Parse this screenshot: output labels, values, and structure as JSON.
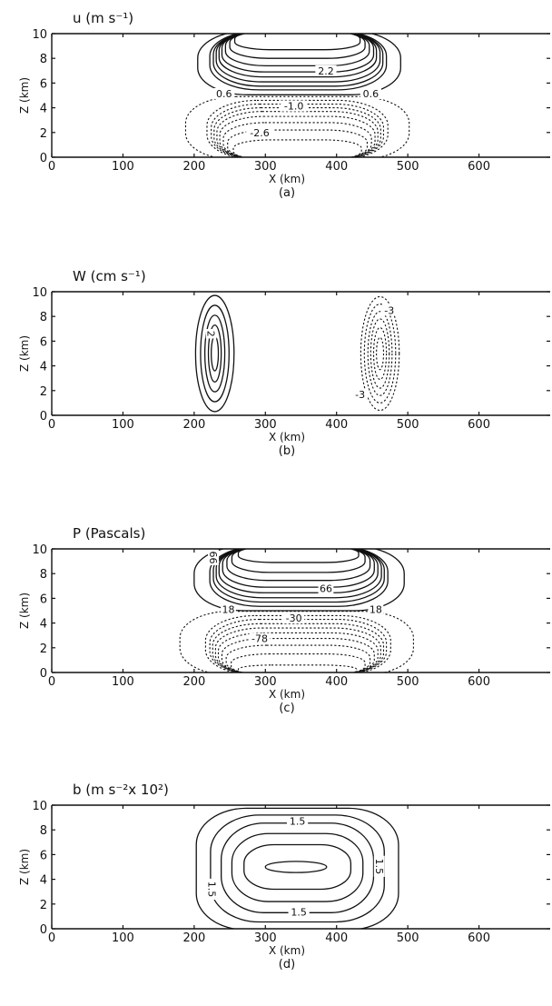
{
  "chart_data": [
    {
      "type": "contour",
      "panel_label": "(a)",
      "title": "u (m s⁻¹)",
      "xlabel": "X (km)",
      "ylabel": "Z (km)",
      "xlim": [
        0,
        700
      ],
      "ylim": [
        0,
        10
      ],
      "xticks": [
        0,
        100,
        200,
        300,
        400,
        500,
        600
      ],
      "yticks": [
        0,
        2,
        4,
        6,
        8,
        10
      ],
      "contour_labels": [
        "2.2",
        "0.6",
        "0.6",
        "-1.0",
        "-2.6"
      ],
      "contours": {
        "positive": [
          {
            "x0": 205,
            "x1": 490,
            "y0": 5.05,
            "y1": 10.2
          },
          {
            "x0": 222,
            "x1": 470,
            "y0": 5.45,
            "y1": 10.2
          },
          {
            "x0": 227,
            "x1": 465,
            "y0": 5.75,
            "y1": 10.2
          },
          {
            "x0": 231,
            "x1": 461,
            "y0": 6.1,
            "y1": 10.2
          },
          {
            "x0": 235,
            "x1": 456,
            "y0": 6.5,
            "y1": 10.2
          },
          {
            "x0": 239,
            "x1": 452,
            "y0": 6.9,
            "y1": 10.2
          },
          {
            "x0": 244,
            "x1": 446,
            "y0": 7.4,
            "y1": 10.2
          },
          {
            "x0": 250,
            "x1": 440,
            "y0": 8.0,
            "y1": 10.2
          },
          {
            "x0": 257,
            "x1": 433,
            "y0": 8.7,
            "y1": 10.2
          }
        ],
        "negative": [
          {
            "x0": 188,
            "x1": 502,
            "y0": -0.2,
            "y1": 4.9
          },
          {
            "x0": 218,
            "x1": 472,
            "y0": -0.2,
            "y1": 4.6
          },
          {
            "x0": 224,
            "x1": 466,
            "y0": -0.2,
            "y1": 4.3
          },
          {
            "x0": 228,
            "x1": 462,
            "y0": -0.2,
            "y1": 4.0
          },
          {
            "x0": 232,
            "x1": 458,
            "y0": -0.2,
            "y1": 3.7
          },
          {
            "x0": 236,
            "x1": 454,
            "y0": -0.2,
            "y1": 3.3
          },
          {
            "x0": 241,
            "x1": 449,
            "y0": -0.2,
            "y1": 2.8
          },
          {
            "x0": 247,
            "x1": 443,
            "y0": -0.2,
            "y1": 2.2
          },
          {
            "x0": 255,
            "x1": 435,
            "y0": -0.2,
            "y1": 1.4
          }
        ]
      },
      "grid": false
    },
    {
      "type": "contour",
      "panel_label": "(b)",
      "title": "W (cm s⁻¹)",
      "xlabel": "X (km)",
      "ylabel": "Z (km)",
      "xlim": [
        0,
        700
      ],
      "ylim": [
        0,
        10
      ],
      "xticks": [
        0,
        100,
        200,
        300,
        400,
        500,
        600
      ],
      "yticks": [
        0,
        2,
        4,
        6,
        8,
        10
      ],
      "contour_labels": [
        "2",
        "-3",
        "-3"
      ],
      "contours": {
        "positive": [
          {
            "cx": 229,
            "cy": 5.0,
            "rx": 27,
            "ry": 4.7
          },
          {
            "cx": 229,
            "cy": 5.0,
            "rx": 20,
            "ry": 3.9
          },
          {
            "cx": 229,
            "cy": 5.0,
            "rx": 14,
            "ry": 3.1
          },
          {
            "cx": 229,
            "cy": 5.0,
            "rx": 9,
            "ry": 2.3
          },
          {
            "cx": 229,
            "cy": 5.0,
            "rx": 5,
            "ry": 1.4
          }
        ],
        "negative": [
          {
            "cx": 461,
            "cy": 5.0,
            "rx": 27,
            "ry": 4.6
          },
          {
            "cx": 461,
            "cy": 5.0,
            "rx": 22,
            "ry": 4.0
          },
          {
            "cx": 461,
            "cy": 5.0,
            "rx": 17,
            "ry": 3.4
          },
          {
            "cx": 461,
            "cy": 5.0,
            "rx": 13,
            "ry": 2.8
          },
          {
            "cx": 461,
            "cy": 5.0,
            "rx": 9,
            "ry": 2.1
          },
          {
            "cx": 461,
            "cy": 5.0,
            "rx": 5,
            "ry": 1.3
          }
        ]
      },
      "grid": false
    },
    {
      "type": "contour",
      "panel_label": "(c)",
      "title": "P (Pascals)",
      "xlabel": "X (km)",
      "ylabel": "Z (km)",
      "xlim": [
        0,
        700
      ],
      "ylim": [
        0,
        10
      ],
      "xticks": [
        0,
        100,
        200,
        300,
        400,
        500,
        600
      ],
      "yticks": [
        0,
        2,
        4,
        6,
        8,
        10
      ],
      "contour_labels": [
        "66",
        "18",
        "18",
        "-30",
        "-78",
        "66"
      ],
      "contours": {
        "positive": [
          {
            "x0": 200,
            "x1": 495,
            "y0": 5.0,
            "y1": 10.2
          },
          {
            "x0": 222,
            "x1": 472,
            "y0": 5.35,
            "y1": 10.2
          },
          {
            "x0": 227,
            "x1": 467,
            "y0": 5.7,
            "y1": 10.2
          },
          {
            "x0": 231,
            "x1": 463,
            "y0": 6.05,
            "y1": 10.2
          },
          {
            "x0": 235,
            "x1": 458,
            "y0": 6.45,
            "y1": 10.2
          },
          {
            "x0": 240,
            "x1": 453,
            "y0": 6.9,
            "y1": 10.2
          },
          {
            "x0": 246,
            "x1": 447,
            "y0": 7.45,
            "y1": 10.2
          },
          {
            "x0": 253,
            "x1": 440,
            "y0": 8.1,
            "y1": 10.2
          },
          {
            "x0": 262,
            "x1": 431,
            "y0": 8.9,
            "y1": 10.2
          }
        ],
        "negative": [
          {
            "x0": 180,
            "x1": 508,
            "y0": -0.2,
            "y1": 4.95
          },
          {
            "x0": 216,
            "x1": 476,
            "y0": -0.2,
            "y1": 4.6
          },
          {
            "x0": 222,
            "x1": 470,
            "y0": -0.2,
            "y1": 4.3
          },
          {
            "x0": 226,
            "x1": 466,
            "y0": -0.2,
            "y1": 3.95
          },
          {
            "x0": 230,
            "x1": 462,
            "y0": -0.2,
            "y1": 3.6
          },
          {
            "x0": 234,
            "x1": 458,
            "y0": -0.2,
            "y1": 3.2
          },
          {
            "x0": 239,
            "x1": 453,
            "y0": -0.2,
            "y1": 2.75
          },
          {
            "x0": 245,
            "x1": 447,
            "y0": -0.2,
            "y1": 2.2
          },
          {
            "x0": 252,
            "x1": 440,
            "y0": -0.2,
            "y1": 1.5
          },
          {
            "x0": 262,
            "x1": 428,
            "y0": -0.2,
            "y1": 0.6
          }
        ]
      },
      "grid": false
    },
    {
      "type": "contour",
      "panel_label": "(d)",
      "title": "b (m s⁻²x 10²)",
      "xlabel": "X (km)",
      "ylabel": "Z (km)",
      "xlim": [
        0,
        700
      ],
      "ylim": [
        0,
        10
      ],
      "xticks": [
        0,
        100,
        200,
        300,
        400,
        500,
        600
      ],
      "yticks": [
        0,
        2,
        4,
        6,
        8,
        10
      ],
      "contour_labels": [
        "1.5",
        "1.5",
        "1.5",
        "1.5"
      ],
      "contours": {
        "positive": [
          {
            "x0": 203,
            "x1": 487,
            "y0": -0.1,
            "y1": 9.75
          },
          {
            "x0": 223,
            "x1": 467,
            "y0": 0.55,
            "y1": 9.2
          },
          {
            "x0": 238,
            "x1": 452,
            "y0": 1.3,
            "y1": 8.55
          },
          {
            "x0": 253,
            "x1": 437,
            "y0": 2.2,
            "y1": 7.7
          },
          {
            "x0": 270,
            "x1": 420,
            "y0": 3.2,
            "y1": 6.8
          }
        ],
        "inner_ellipse": {
          "cx": 343,
          "cy": 5.0,
          "rx": 43,
          "ry": 0.45
        }
      },
      "grid": false
    }
  ]
}
